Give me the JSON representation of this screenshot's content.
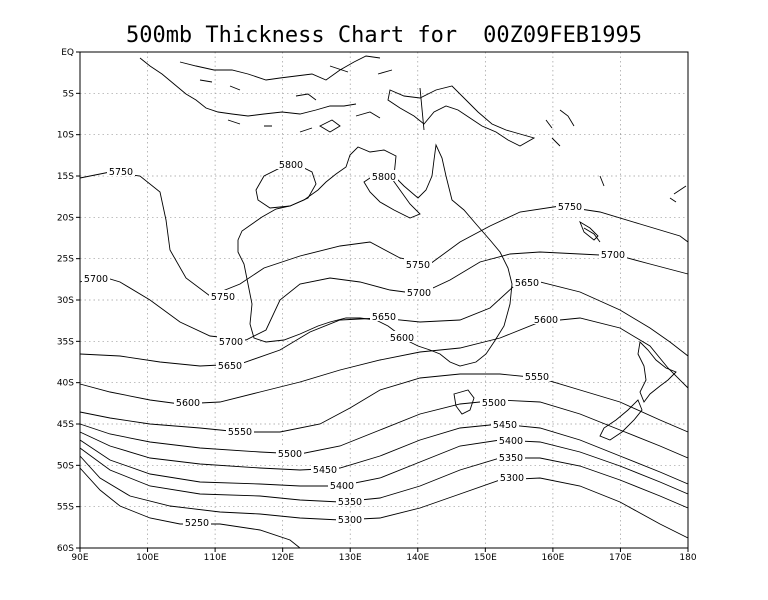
{
  "title": "500mb Thickness Chart for",
  "datetime": "00Z09FEB1995",
  "lon_ticks": [
    "90E",
    "100E",
    "110E",
    "120E",
    "130E",
    "140E",
    "150E",
    "160E",
    "170E",
    "180"
  ],
  "lat_ticks": [
    "EQ",
    "5S",
    "10S",
    "15S",
    "20S",
    "25S",
    "30S",
    "35S",
    "40S",
    "45S",
    "50S",
    "55S",
    "60S"
  ],
  "contours": [
    {
      "value": 5250,
      "labels": [
        "5250"
      ]
    },
    {
      "value": 5300,
      "labels": [
        "5300",
        "5300"
      ]
    },
    {
      "value": 5350,
      "labels": [
        "5350",
        "5350"
      ]
    },
    {
      "value": 5400,
      "labels": [
        "5400",
        "5400"
      ]
    },
    {
      "value": 5450,
      "labels": [
        "5450",
        "5450"
      ]
    },
    {
      "value": 5500,
      "labels": [
        "5500",
        "5500"
      ]
    },
    {
      "value": 5550,
      "labels": [
        "5550",
        "5550"
      ]
    },
    {
      "value": 5600,
      "labels": [
        "5600",
        "5600",
        "5600"
      ]
    },
    {
      "value": 5650,
      "labels": [
        "5650",
        "5650",
        "5650"
      ]
    },
    {
      "value": 5700,
      "labels": [
        "5700",
        "5700",
        "5700",
        "5700"
      ]
    },
    {
      "value": 5750,
      "labels": [
        "5750",
        "5750",
        "5750",
        "5750"
      ]
    },
    {
      "value": 5800,
      "labels": [
        "5800",
        "5800"
      ]
    }
  ],
  "grid": "dotted"
}
